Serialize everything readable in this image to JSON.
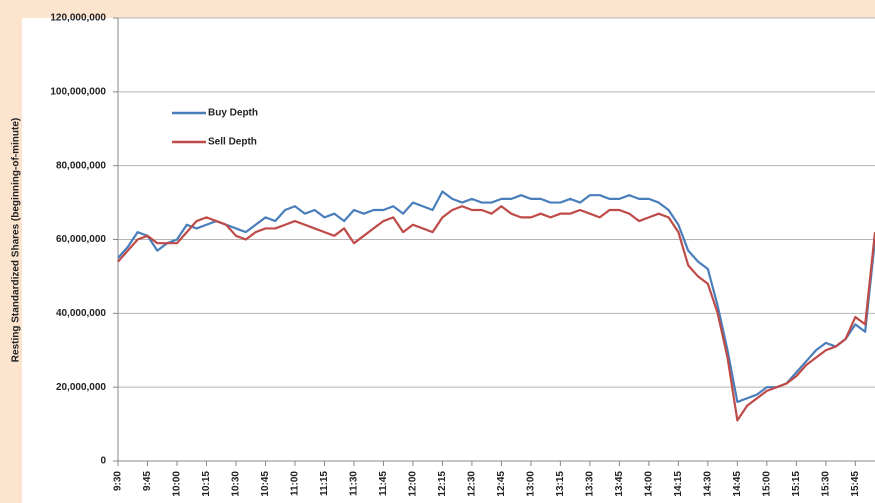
{
  "chart_data": {
    "type": "line",
    "y_label": "Resting Standardized Shares (beginning-of-minute)",
    "categories": [
      "9:30",
      null,
      null,
      "9:45",
      null,
      null,
      "10:00",
      null,
      null,
      "10:15",
      null,
      null,
      "10:30",
      null,
      null,
      "10:45",
      null,
      null,
      "11:00",
      null,
      null,
      "11:15",
      null,
      null,
      "11:30",
      null,
      null,
      "11:45",
      null,
      null,
      "12:00",
      null,
      null,
      "12:15",
      null,
      null,
      "12:30",
      null,
      null,
      "12:45",
      null,
      null,
      "13:00",
      null,
      null,
      "13:15",
      null,
      null,
      "13:30",
      null,
      null,
      "13:45",
      null,
      null,
      "14:00",
      null,
      null,
      "14:15",
      null,
      null,
      "14:30",
      null,
      null,
      "14:45",
      null,
      null,
      "15:00",
      null,
      null,
      "15:15",
      null,
      null,
      "15:30",
      null,
      null,
      "15:45",
      null,
      null
    ],
    "series": [
      {
        "name": "Buy Depth",
        "color": "#4a7ebb",
        "values": [
          55000000,
          58000000,
          62000000,
          61000000,
          57000000,
          59000000,
          60000000,
          64000000,
          63000000,
          64000000,
          65000000,
          64000000,
          63000000,
          62000000,
          64000000,
          66000000,
          65000000,
          68000000,
          69000000,
          67000000,
          68000000,
          66000000,
          67000000,
          65000000,
          68000000,
          67000000,
          68000000,
          68000000,
          69000000,
          67000000,
          70000000,
          69000000,
          68000000,
          73000000,
          71000000,
          70000000,
          71000000,
          70000000,
          70000000,
          71000000,
          71000000,
          72000000,
          71000000,
          71000000,
          70000000,
          70000000,
          71000000,
          70000000,
          72000000,
          72000000,
          71000000,
          71000000,
          72000000,
          71000000,
          71000000,
          70000000,
          68000000,
          64000000,
          57000000,
          54000000,
          52000000,
          42000000,
          30000000,
          16000000,
          17000000,
          18000000,
          20000000,
          20000000,
          21000000,
          24000000,
          27000000,
          30000000,
          32000000,
          31000000,
          33000000,
          37000000,
          35000000,
          60000000
        ]
      },
      {
        "name": "Sell Depth",
        "color": "#be4b48",
        "values": [
          54000000,
          57000000,
          60000000,
          61000000,
          59000000,
          59000000,
          59000000,
          62000000,
          65000000,
          66000000,
          65000000,
          64000000,
          61000000,
          60000000,
          62000000,
          63000000,
          63000000,
          64000000,
          65000000,
          64000000,
          63000000,
          62000000,
          61000000,
          63000000,
          59000000,
          61000000,
          63000000,
          65000000,
          66000000,
          62000000,
          64000000,
          63000000,
          62000000,
          66000000,
          68000000,
          69000000,
          68000000,
          68000000,
          67000000,
          69000000,
          67000000,
          66000000,
          66000000,
          67000000,
          66000000,
          67000000,
          67000000,
          68000000,
          67000000,
          66000000,
          68000000,
          68000000,
          67000000,
          65000000,
          66000000,
          67000000,
          66000000,
          62000000,
          53000000,
          50000000,
          48000000,
          40000000,
          28000000,
          11000000,
          15000000,
          17000000,
          19000000,
          20000000,
          21000000,
          23000000,
          26000000,
          28000000,
          30000000,
          31000000,
          33000000,
          39000000,
          37000000,
          62000000
        ]
      }
    ],
    "ylim": [
      0,
      120000000
    ],
    "yticks": [
      0,
      {
        "value": 20000000,
        "label": "20,000,000"
      },
      {
        "value": 40000000,
        "label": "40,000,000"
      },
      {
        "value": 60000000,
        "label": "60,000,000"
      },
      {
        "value": 80000000,
        "label": "80,000,000"
      },
      {
        "value": 100000000,
        "label": "100,000,000"
      },
      {
        "value": 120000000,
        "label": "120,000,000"
      }
    ],
    "grid": true,
    "legend": "upper-left"
  }
}
